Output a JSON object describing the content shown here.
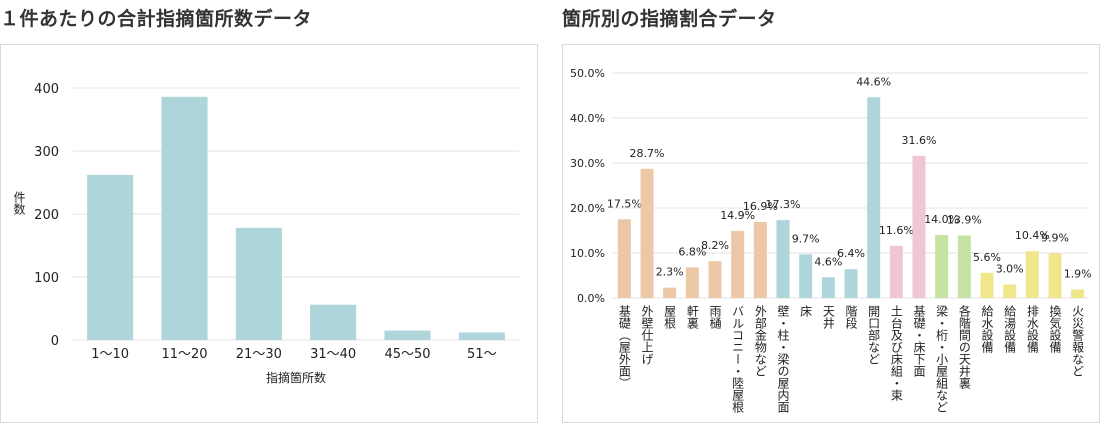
{
  "titles": {
    "left": "１件あたりの合計指摘箇所数データ",
    "right": "箇所別の指摘割合データ"
  },
  "chart_data": [
    {
      "type": "bar",
      "title": "１件あたりの合計指摘箇所数データ",
      "xlabel": "指摘箇所数",
      "ylabel": "件数",
      "categories": [
        "1〜10",
        "11〜20",
        "21〜30",
        "31〜40",
        "45〜50",
        "51〜"
      ],
      "values": [
        262,
        386,
        178,
        56,
        15,
        12
      ],
      "ylim": [
        0,
        400
      ],
      "yticks": [
        0,
        100,
        200,
        300,
        400
      ],
      "grid": true,
      "colors": {
        "bar": "#aed5d9"
      }
    },
    {
      "type": "bar",
      "title": "箇所別の指摘割合データ",
      "categories": [
        "基礎（屋外面）",
        "外壁仕上げ",
        "屋根",
        "軒裏",
        "雨樋",
        "バルコニー・陸屋根",
        "外部金物など",
        "壁・柱・梁の屋内面",
        "床",
        "天井",
        "階段",
        "開口部など",
        "土台及び床組・束",
        "基礎・床下面",
        "梁・桁・小屋組など",
        "各階間の天井裏",
        "給水設備",
        "給湯設備",
        "排水設備",
        "換気設備",
        "火災警報など"
      ],
      "values": [
        17.5,
        28.7,
        2.3,
        6.8,
        8.2,
        14.9,
        16.9,
        17.3,
        9.7,
        4.6,
        6.4,
        44.6,
        11.6,
        31.6,
        14.0,
        13.9,
        5.6,
        3.0,
        10.4,
        9.9,
        1.9
      ],
      "value_labels": [
        "17.5%",
        "28.7%",
        "2.3%",
        "6.8%",
        "8.2%",
        "14.9%",
        "16.9%",
        "17.3%",
        "9.7%",
        "4.6%",
        "6.4%",
        "44.6%",
        "11.6%",
        "31.6%",
        "14.0%",
        "13.9%",
        "5.6%",
        "3.0%",
        "10.4%",
        "9.9%",
        "1.9%"
      ],
      "bar_colors": [
        "#ecc8a7",
        "#ecc8a7",
        "#ecc8a7",
        "#ecc8a7",
        "#ecc8a7",
        "#ecc8a7",
        "#ecc8a7",
        "#aed5d9",
        "#aed5d9",
        "#aed5d9",
        "#aed5d9",
        "#aed5d9",
        "#efc6d6",
        "#efc6d6",
        "#c6e2a3",
        "#c6e2a3",
        "#f0e68c",
        "#f0e68c",
        "#f0e68c",
        "#f0e68c",
        "#f0e68c"
      ],
      "ylim": [
        0,
        50
      ],
      "yticks": [
        "0.0%",
        "10.0%",
        "20.0%",
        "30.0%",
        "40.0%",
        "50.0%"
      ],
      "grid": true
    }
  ]
}
